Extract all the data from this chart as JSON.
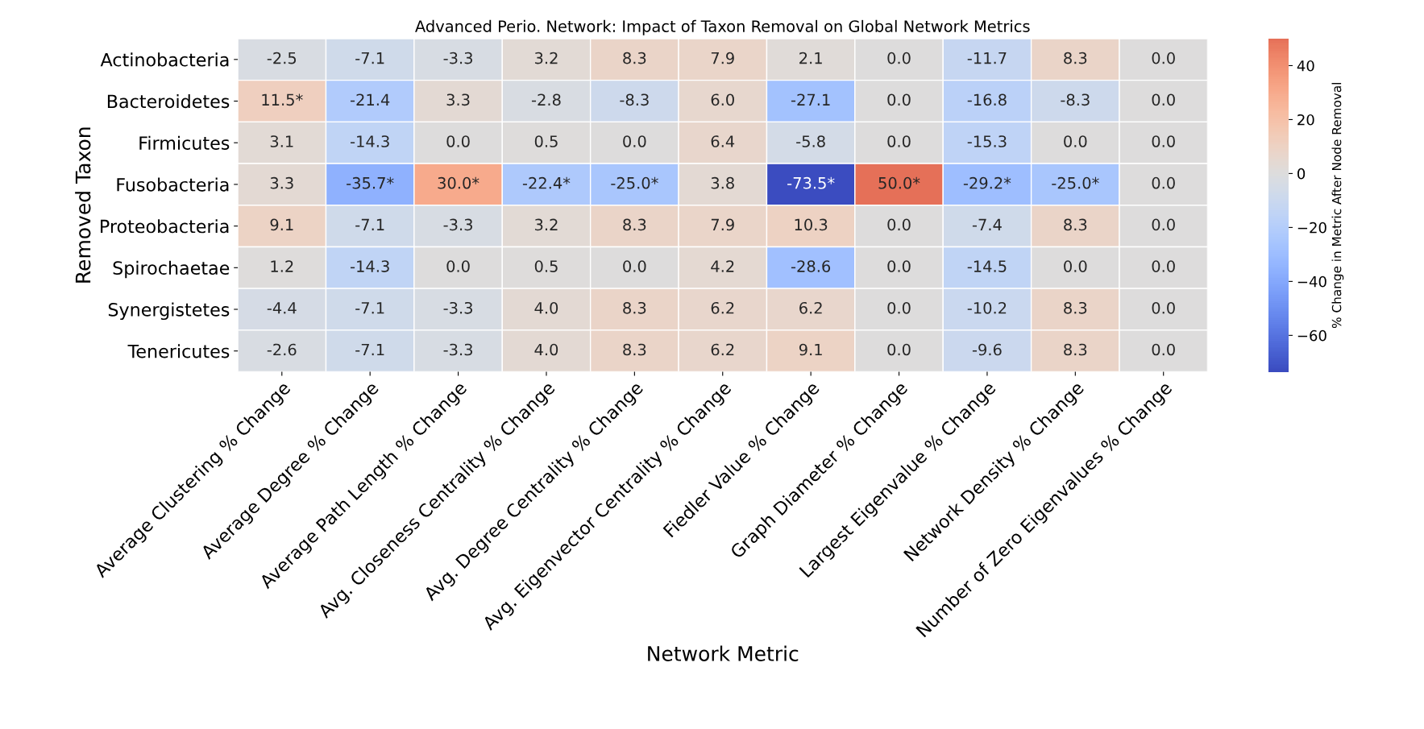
{
  "chart_data": {
    "type": "heatmap",
    "title": "Advanced Perio. Network: Impact of Taxon Removal on Global Network Metrics",
    "xlabel": "Network Metric",
    "ylabel": "Removed Taxon",
    "clabel": "% Change in Metric After Node Removal",
    "categories": [
      "Average Clustering % Change",
      "Average Degree % Change",
      "Average Path Length % Change",
      "Avg. Closeness Centrality % Change",
      "Avg. Degree Centrality % Change",
      "Avg. Eigenvector Centrality % Change",
      "Fiedler Value % Change",
      "Graph Diameter % Change",
      "Largest Eigenvalue % Change",
      "Network Density % Change",
      "Number of Zero Eigenvalues % Change"
    ],
    "y_categories": [
      "Actinobacteria",
      "Bacteroidetes",
      "Firmicutes",
      "Fusobacteria",
      "Proteobacteria",
      "Spirochaetae",
      "Synergistetes",
      "Tenericutes"
    ],
    "cells": [
      [
        -2.5,
        -7.1,
        -3.3,
        3.2,
        8.3,
        7.9,
        2.1,
        0.0,
        -11.7,
        8.3,
        0.0
      ],
      [
        11.5,
        -21.4,
        3.3,
        -2.8,
        -8.3,
        6.0,
        -27.1,
        0.0,
        -16.8,
        -8.3,
        0.0
      ],
      [
        3.1,
        -14.3,
        0.0,
        0.5,
        0.0,
        6.4,
        -5.8,
        0.0,
        -15.3,
        0.0,
        0.0
      ],
      [
        3.3,
        -35.7,
        30.0,
        -22.4,
        -25.0,
        3.8,
        -73.5,
        50.0,
        -29.2,
        -25.0,
        0.0
      ],
      [
        9.1,
        -7.1,
        -3.3,
        3.2,
        8.3,
        7.9,
        10.3,
        0.0,
        -7.4,
        8.3,
        0.0
      ],
      [
        1.2,
        -14.3,
        0.0,
        0.5,
        0.0,
        4.2,
        -28.6,
        0.0,
        -14.5,
        0.0,
        0.0
      ],
      [
        -4.4,
        -7.1,
        -3.3,
        4.0,
        8.3,
        6.2,
        6.2,
        0.0,
        -10.2,
        8.3,
        0.0
      ],
      [
        -2.6,
        -7.1,
        -3.3,
        4.0,
        8.3,
        6.2,
        9.1,
        0.0,
        -9.6,
        8.3,
        0.0
      ]
    ],
    "cell_labels": [
      [
        "-2.5",
        "-7.1",
        "-3.3",
        "3.2",
        "8.3",
        "7.9",
        "2.1",
        "0.0",
        "-11.7",
        "8.3",
        "0.0"
      ],
      [
        "11.5*",
        "-21.4",
        "3.3",
        "-2.8",
        "-8.3",
        "6.0",
        "-27.1",
        "0.0",
        "-16.8",
        "-8.3",
        "0.0"
      ],
      [
        "3.1",
        "-14.3",
        "0.0",
        "0.5",
        "0.0",
        "6.4",
        "-5.8",
        "0.0",
        "-15.3",
        "0.0",
        "0.0"
      ],
      [
        "3.3",
        "-35.7*",
        "30.0*",
        "-22.4*",
        "-25.0*",
        "3.8",
        "-73.5*",
        "50.0*",
        "-29.2*",
        "-25.0*",
        "0.0"
      ],
      [
        "9.1",
        "-7.1",
        "-3.3",
        "3.2",
        "8.3",
        "7.9",
        "10.3",
        "0.0",
        "-7.4",
        "8.3",
        "0.0"
      ],
      [
        "1.2",
        "-14.3",
        "0.0",
        "0.5",
        "0.0",
        "4.2",
        "-28.6",
        "0.0",
        "-14.5",
        "0.0",
        "0.0"
      ],
      [
        "-4.4",
        "-7.1",
        "-3.3",
        "4.0",
        "8.3",
        "6.2",
        "6.2",
        "0.0",
        "-10.2",
        "8.3",
        "0.0"
      ],
      [
        "-2.6",
        "-7.1",
        "-3.3",
        "4.0",
        "8.3",
        "6.2",
        "9.1",
        "0.0",
        "-9.6",
        "8.3",
        "0.0"
      ]
    ],
    "clim": [
      -73.5,
      50
    ],
    "cticks": [
      {
        "value": -60,
        "label": "−60"
      },
      {
        "value": -40,
        "label": "−40"
      },
      {
        "value": -20,
        "label": "−20"
      },
      0,
      20,
      40
    ]
  }
}
